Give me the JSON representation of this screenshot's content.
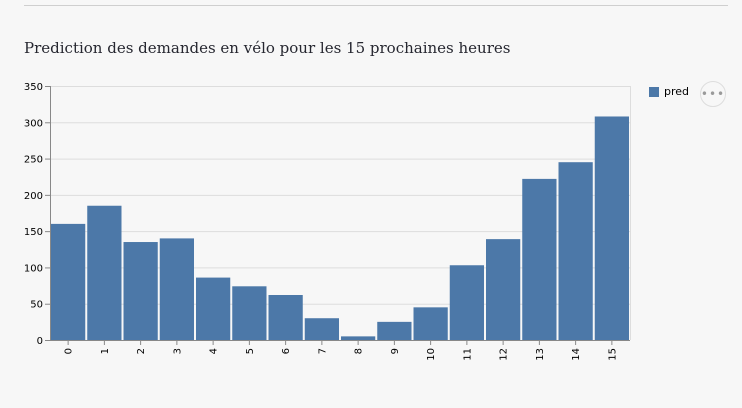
{
  "chart_data": {
    "type": "bar",
    "title": "Prediction des demandes en vélo pour les 15 prochaines heures",
    "categories": [
      "0",
      "1",
      "2",
      "3",
      "4",
      "5",
      "6",
      "7",
      "8",
      "9",
      "10",
      "11",
      "12",
      "13",
      "14",
      "15"
    ],
    "series": [
      {
        "name": "pred",
        "values": [
          160,
          185,
          135,
          140,
          86,
          74,
          62,
          30,
          5,
          25,
          45,
          103,
          139,
          222,
          245,
          308
        ]
      }
    ],
    "ylim": [
      0,
      350
    ],
    "yticks": [
      0,
      50,
      100,
      150,
      200,
      250,
      300,
      350
    ],
    "grid": true,
    "legend": "right",
    "color": "#4c78a8"
  },
  "legend": {
    "label": "pred"
  },
  "more_button": {
    "icon": "ellipsis-icon",
    "glyph": "•••"
  }
}
